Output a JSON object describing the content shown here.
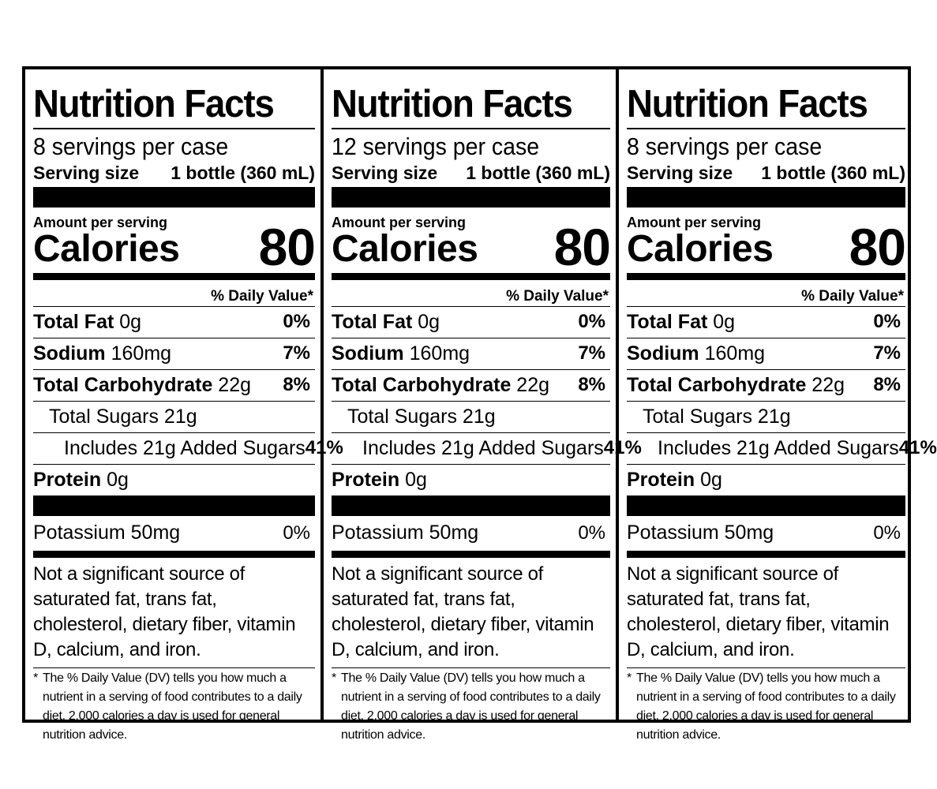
{
  "panels": [
    {
      "title": "Nutrition Facts",
      "servings": "8 servings per case",
      "serving_size_label": "Serving size",
      "serving_size_value": "1 bottle (360 mL)",
      "amount_label": "Amount per serving",
      "calories_label": "Calories",
      "calories_value": "80",
      "dv_header": "% Daily Value*",
      "total_fat": {
        "label": "Total Fat",
        "amount": "0g",
        "dv": "0%"
      },
      "sodium": {
        "label": "Sodium",
        "amount": "160mg",
        "dv": "7%"
      },
      "carb": {
        "label": "Total Carbohydrate",
        "amount": "22g",
        "dv": "8%"
      },
      "sugars": {
        "label": "Total Sugars 21g"
      },
      "added_sugars": {
        "label": "Includes 21g Added Sugars",
        "dv": "41%"
      },
      "protein": {
        "label": "Protein",
        "amount": "0g"
      },
      "potassium": {
        "label": "Potassium 50mg",
        "dv": "0%"
      },
      "note": "Not a significant source of saturated fat, trans fat, cholesterol, dietary fiber, vitamin D, calcium, and iron.",
      "footnote_star": "*",
      "footnote": "The % Daily Value (DV) tells you how much a nutrient in a serving of food contributes to a daily diet. 2,000 calories a day is used for general nutrition advice."
    },
    {
      "title": "Nutrition Facts",
      "servings": "12 servings per case",
      "serving_size_label": "Serving size",
      "serving_size_value": "1 bottle (360 mL)",
      "amount_label": "Amount per serving",
      "calories_label": "Calories",
      "calories_value": "80",
      "dv_header": "% Daily Value*",
      "total_fat": {
        "label": "Total Fat",
        "amount": "0g",
        "dv": "0%"
      },
      "sodium": {
        "label": "Sodium",
        "amount": "160mg",
        "dv": "7%"
      },
      "carb": {
        "label": "Total Carbohydrate",
        "amount": "22g",
        "dv": "8%"
      },
      "sugars": {
        "label": "Total Sugars 21g"
      },
      "added_sugars": {
        "label": "Includes 21g Added Sugars",
        "dv": "41%"
      },
      "protein": {
        "label": "Protein",
        "amount": "0g"
      },
      "potassium": {
        "label": "Potassium 50mg",
        "dv": "0%"
      },
      "note": "Not a significant source of saturated fat, trans fat, cholesterol, dietary fiber, vitamin D, calcium, and iron.",
      "footnote_star": "*",
      "footnote": "The % Daily Value (DV) tells you how much a nutrient in a serving of food contributes to a daily diet. 2,000 calories a day is used for general nutrition advice."
    },
    {
      "title": "Nutrition Facts",
      "servings": "8 servings per case",
      "serving_size_label": "Serving size",
      "serving_size_value": "1 bottle (360 mL)",
      "amount_label": "Amount per serving",
      "calories_label": "Calories",
      "calories_value": "80",
      "dv_header": "% Daily Value*",
      "total_fat": {
        "label": "Total Fat",
        "amount": "0g",
        "dv": "0%"
      },
      "sodium": {
        "label": "Sodium",
        "amount": "160mg",
        "dv": "7%"
      },
      "carb": {
        "label": "Total Carbohydrate",
        "amount": "22g",
        "dv": "8%"
      },
      "sugars": {
        "label": "Total Sugars 21g"
      },
      "added_sugars": {
        "label": "Includes 21g Added Sugars",
        "dv": "41%"
      },
      "protein": {
        "label": "Protein",
        "amount": "0g"
      },
      "potassium": {
        "label": "Potassium 50mg",
        "dv": "0%"
      },
      "note": "Not a significant source of saturated fat, trans fat, cholesterol, dietary fiber, vitamin D, calcium, and iron.",
      "footnote_star": "*",
      "footnote": "The % Daily Value (DV) tells you how much a nutrient in a serving of food contributes to a daily diet. 2,000 calories a day is used for general nutrition advice."
    }
  ]
}
